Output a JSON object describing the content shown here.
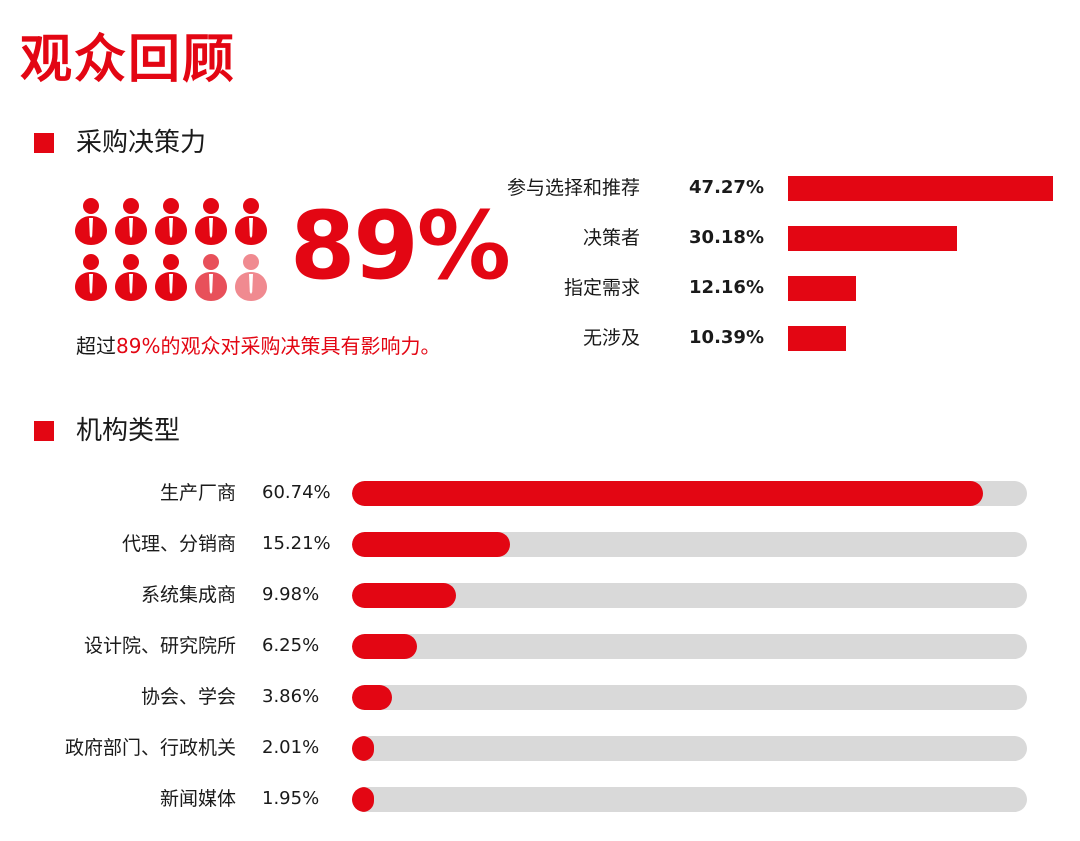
{
  "page": {
    "title": "观众回顾",
    "accent_color": "#e30613",
    "track_color": "#d9d9d9"
  },
  "section1": {
    "header": "采购决策力",
    "big_percent": "89%",
    "note_prefix": "超过",
    "note_highlight": "89%的观众对采购决策具有影响力。",
    "people_icons": {
      "count": 10,
      "filled_full": 8,
      "filled_partial": 1,
      "filled_light": 1
    }
  },
  "section2": {
    "header": "机构类型"
  },
  "chart_data": [
    {
      "type": "bar",
      "orientation": "horizontal",
      "title": "采购决策力",
      "categories": [
        "参与选择和推荐",
        "决策者",
        "指定需求",
        "无涉及"
      ],
      "values": [
        47.27,
        30.18,
        12.16,
        10.39
      ],
      "value_labels": [
        "47.27%",
        "30.18%",
        "12.16%",
        "10.39%"
      ],
      "xlim": [
        0,
        47.27
      ]
    },
    {
      "type": "bar",
      "orientation": "horizontal",
      "title": "机构类型",
      "categories": [
        "生产厂商",
        "代理、分销商",
        "系统集成商",
        "设计院、研究院所",
        "协会、学会",
        "政府部门、行政机关",
        "新闻媒体"
      ],
      "values": [
        60.74,
        15.21,
        9.98,
        6.25,
        3.86,
        2.01,
        1.95
      ],
      "value_labels": [
        "60.74%",
        "15.21%",
        "9.98%",
        "6.25%",
        "3.86%",
        "2.01%",
        "1.95%"
      ],
      "xlim": [
        0,
        65
      ]
    }
  ]
}
